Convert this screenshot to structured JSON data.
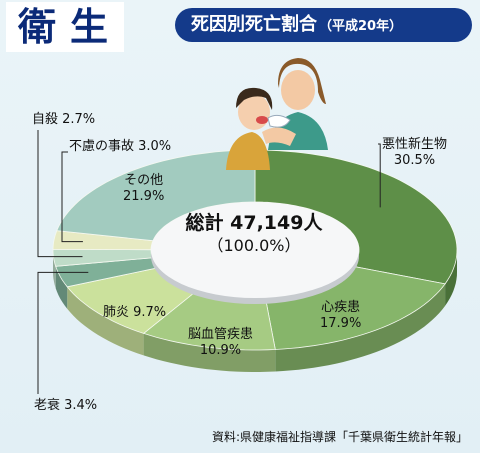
{
  "header": {
    "section_title": "衛生",
    "chart_title": "死因別死亡割合",
    "chart_subtitle": "（平成20年）"
  },
  "chart_data": {
    "type": "pie",
    "style": "3d-donut",
    "title": "死因別死亡割合（平成20年）",
    "center_total": "総計 47,149人",
    "center_percent": "（100.0%）",
    "slices": [
      {
        "name": "悪性新生物",
        "pct_label": "30.5%",
        "value": 30.5,
        "color": "#5e8f48"
      },
      {
        "name": "心疾患",
        "pct_label": "17.9%",
        "value": 17.9,
        "color": "#86b56a"
      },
      {
        "name": "脳血管疾患",
        "pct_label": "10.9%",
        "value": 10.9,
        "color": "#a6cb83"
      },
      {
        "name": "肺炎",
        "pct_label": "9.7%",
        "value": 9.7,
        "color": "#cbe19c"
      },
      {
        "name": "老衰",
        "pct_label": "3.4%",
        "value": 3.4,
        "color": "#7fb098"
      },
      {
        "name": "自殺",
        "pct_label": "2.7%",
        "value": 2.7,
        "color": "#bfdcc8"
      },
      {
        "name": "不慮の事故",
        "pct_label": "3.0%",
        "value": 3.0,
        "color": "#e7eac3"
      },
      {
        "name": "その他",
        "pct_label": "21.9%",
        "value": 21.9,
        "color": "#a2cbbf"
      }
    ]
  },
  "labels": {
    "l0_name": "悪性新生物",
    "l0_pct": "30.5%",
    "l1_name": "心疾患",
    "l1_pct": "17.9%",
    "l2_name": "脳血管疾患",
    "l2_pct": "10.9%",
    "l3": "肺炎 9.7%",
    "l4": "老衰 3.4%",
    "l5": "自殺 2.7%",
    "l6": "不慮の事故 3.0%",
    "l7_name": "その他",
    "l7_pct": "21.9%"
  },
  "source": "資料:県健康福祉指導課「千葉県衛生統計年報」"
}
